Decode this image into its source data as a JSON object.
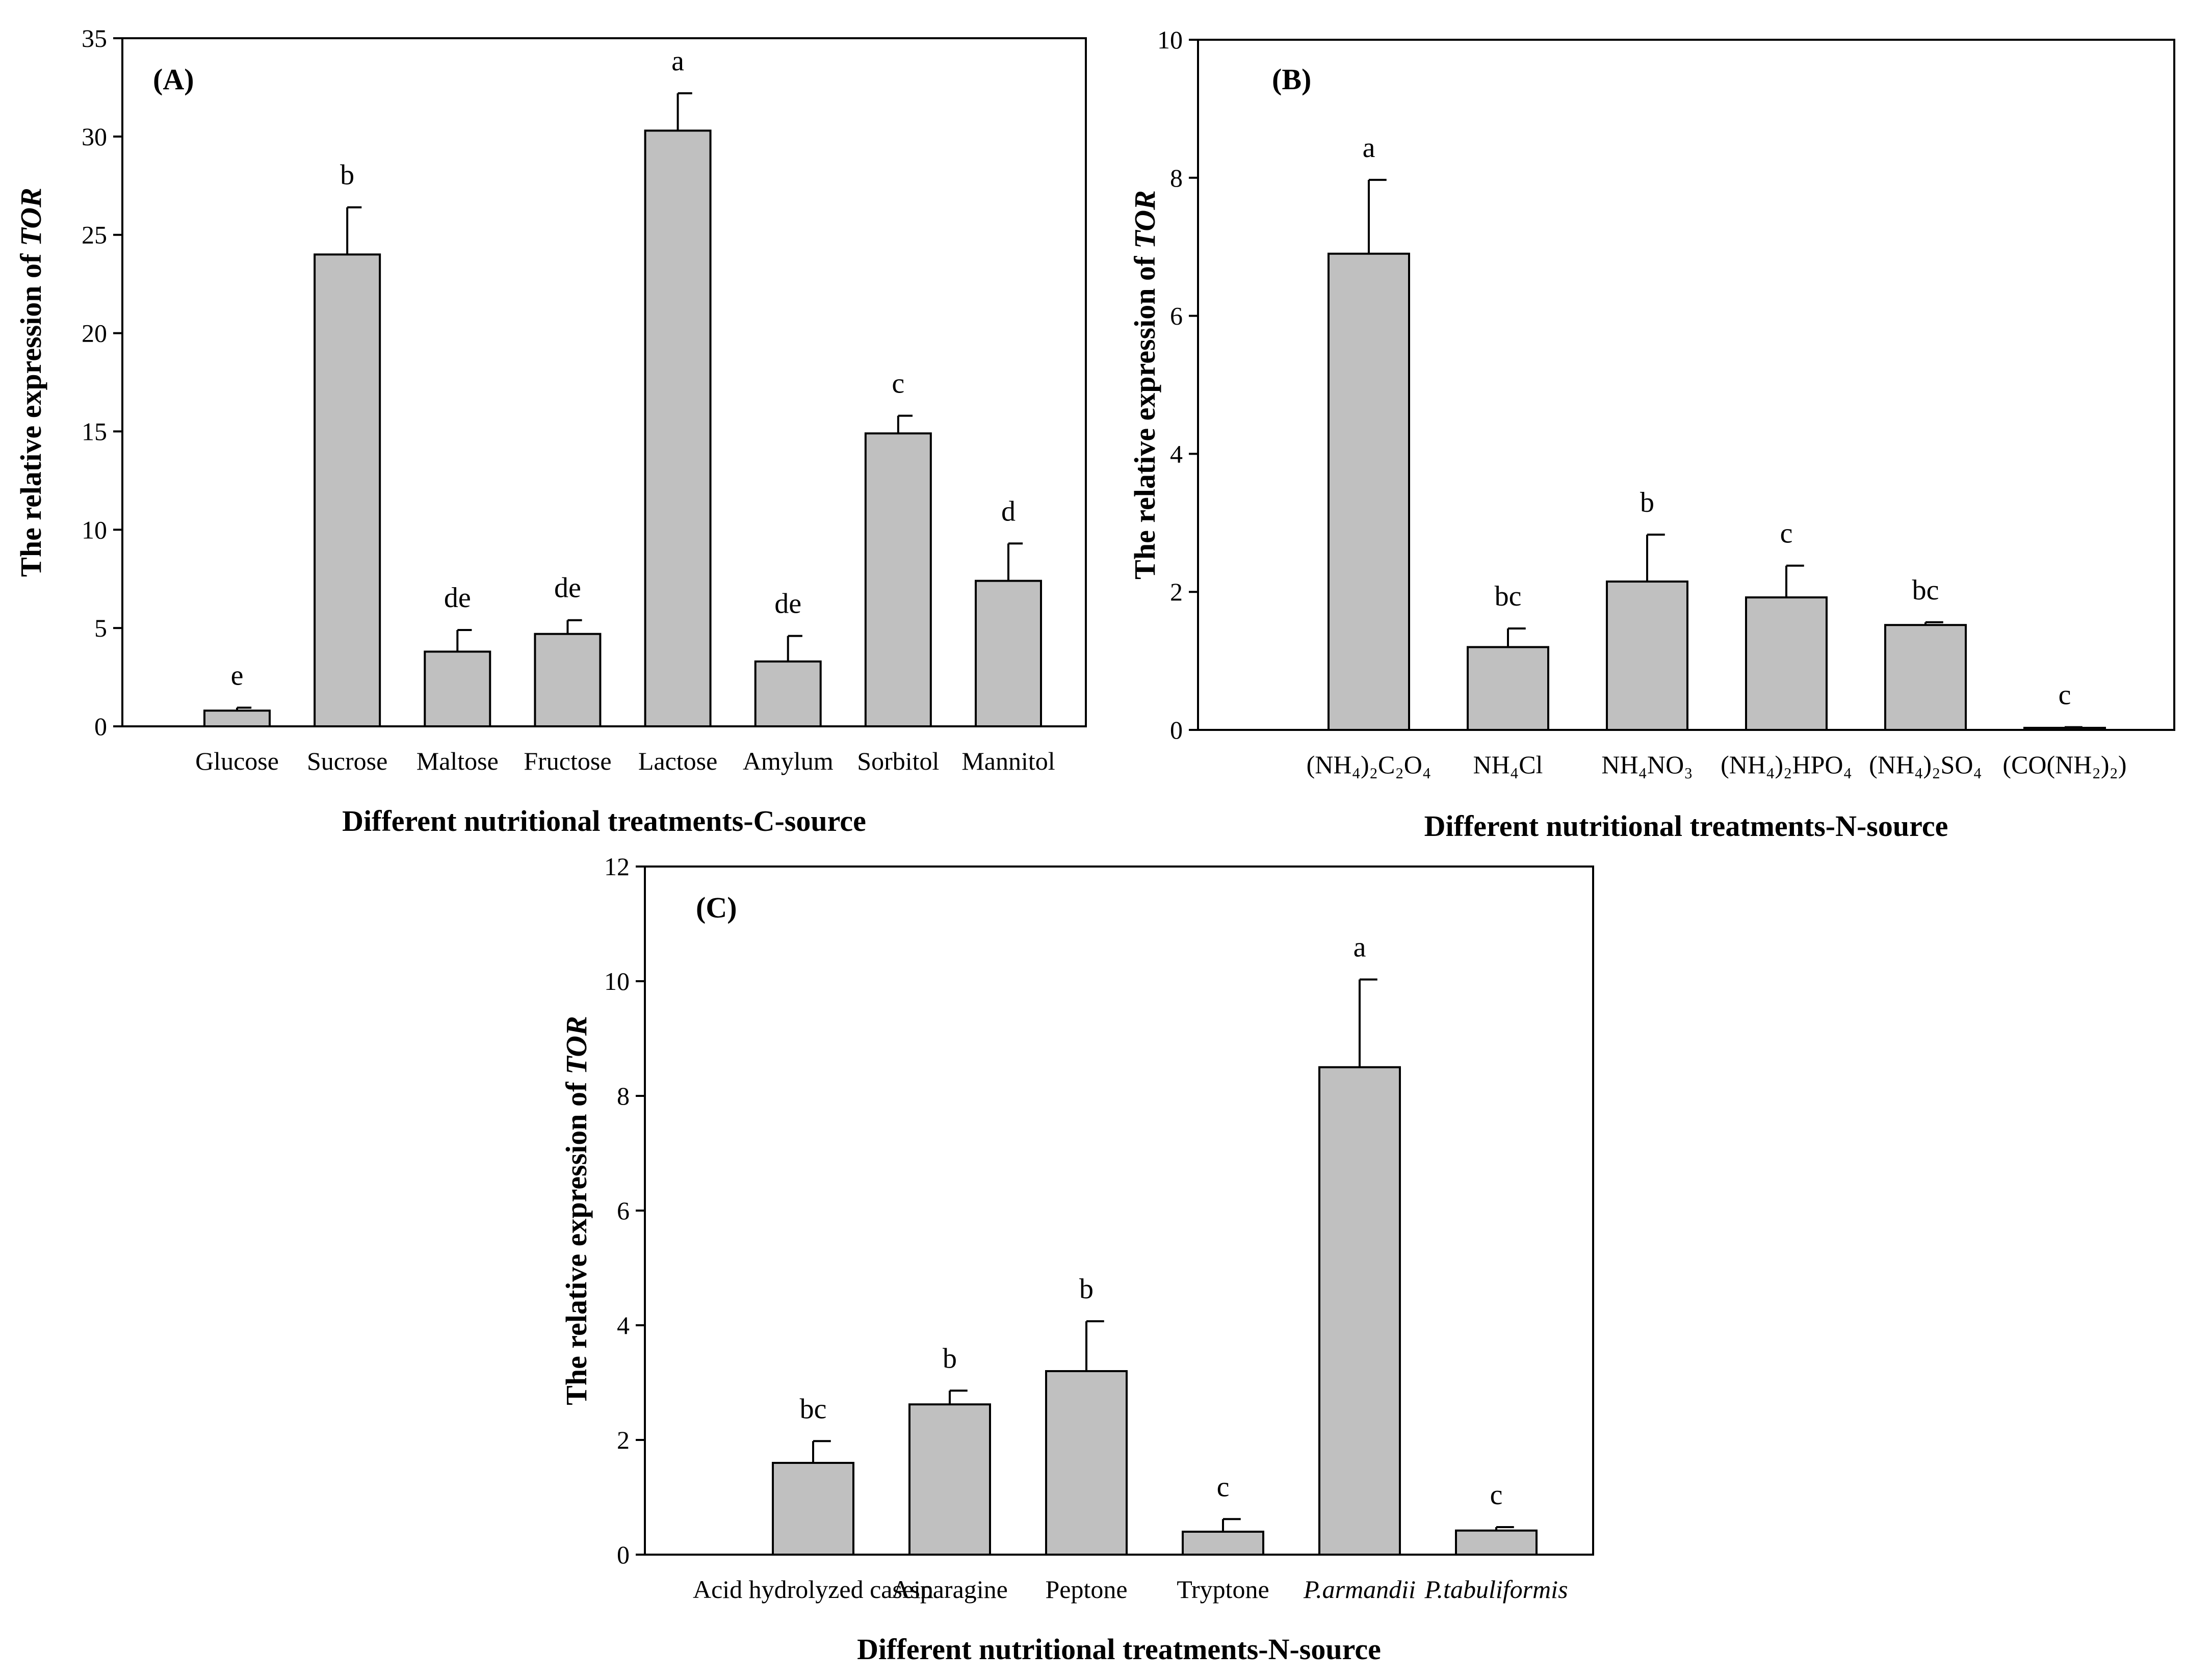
{
  "chart_data": [
    {
      "id": "A",
      "type": "bar",
      "panel_label": "(A)",
      "title": "",
      "xlabel": "Different nutritional treatments-C-source",
      "ylabel_prefix": "The relative expression of ",
      "ylabel_gene": "TOR",
      "ylim": [
        0,
        35
      ],
      "yticks": [
        0,
        5,
        10,
        15,
        20,
        25,
        30,
        35
      ],
      "grid": false,
      "categories": [
        "Glucose",
        "Sucrose",
        "Maltose",
        "Fructose",
        "Lactose",
        "Amylum",
        "Sorbitol",
        "Mannitol"
      ],
      "italic_categories": [],
      "values": [
        0.8,
        24.0,
        3.8,
        4.7,
        30.3,
        3.3,
        14.9,
        7.4
      ],
      "errors": [
        0.15,
        2.4,
        1.1,
        0.7,
        1.9,
        1.3,
        0.9,
        1.9
      ],
      "significance": [
        "e",
        "b",
        "de",
        "de",
        "a",
        "de",
        "c",
        "d"
      ]
    },
    {
      "id": "B",
      "type": "bar",
      "panel_label": "(B)",
      "title": "",
      "xlabel": "Different nutritional treatments-N-source",
      "ylabel_prefix": "The relative expression of ",
      "ylabel_gene": "TOR",
      "ylim": [
        0,
        10
      ],
      "yticks": [
        0,
        2,
        4,
        6,
        8,
        10
      ],
      "grid": false,
      "categories": [
        "(NH₄)₂C₂O₄",
        "NH₄Cl",
        "NH₄NO₃",
        "(NH₄)₂HPO₄",
        "(NH₄)₂SO₄",
        "(CO(NH₂)₂)"
      ],
      "italic_categories": [],
      "values": [
        6.9,
        1.2,
        2.15,
        1.92,
        1.52,
        0.03
      ],
      "errors": [
        1.07,
        0.27,
        0.68,
        0.46,
        0.04,
        0.01
      ],
      "significance": [
        "a",
        "bc",
        "b",
        "c",
        "bc",
        "c"
      ]
    },
    {
      "id": "C",
      "type": "bar",
      "panel_label": "(C)",
      "title": "",
      "xlabel": "Different nutritional treatments-N-source",
      "ylabel_prefix": "The relative expression of ",
      "ylabel_gene": "TOR",
      "ylim": [
        0,
        12
      ],
      "yticks": [
        0,
        2,
        4,
        6,
        8,
        10,
        12
      ],
      "grid": false,
      "categories": [
        "Acid hydrolyzed casein",
        "Asparagine",
        "Peptone",
        "Tryptone",
        "P.armandii",
        "P.tabuliformis"
      ],
      "italic_categories": [
        "P.armandii",
        "P.tabuliformis"
      ],
      "values": [
        1.6,
        2.62,
        3.2,
        0.4,
        8.5,
        0.42
      ],
      "errors": [
        0.38,
        0.24,
        0.87,
        0.22,
        1.53,
        0.06
      ],
      "significance": [
        "bc",
        "b",
        "b",
        "c",
        "a",
        "c"
      ]
    }
  ]
}
